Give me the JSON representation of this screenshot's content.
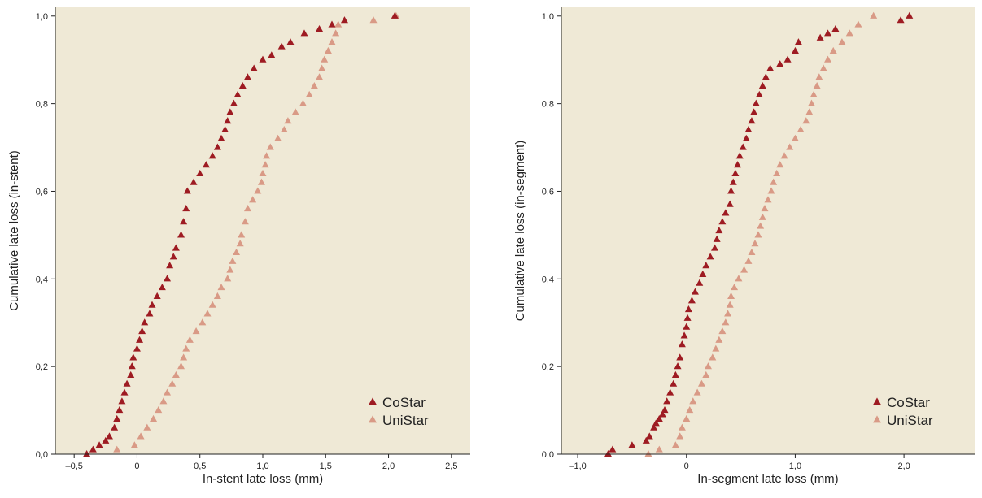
{
  "colors": {
    "plot_background": "#efe9d6",
    "costar": "#9e1b22",
    "unistar": "#d99a86"
  },
  "chart_data": [
    {
      "type": "scatter",
      "title": "",
      "xlabel": "In-stent late loss (mm)",
      "ylabel": "Cumulative late loss (in-stent)",
      "xlim": [
        -0.65,
        2.65
      ],
      "ylim": [
        0,
        1.02
      ],
      "x_ticks": [
        -0.5,
        0,
        0.5,
        1.0,
        1.5,
        2.0,
        2.5
      ],
      "x_tick_labels": [
        "–0,5",
        "0",
        "0,5",
        "1,0",
        "1,5",
        "2,0",
        "2,5"
      ],
      "y_ticks": [
        0,
        0.2,
        0.4,
        0.6,
        0.8,
        1.0
      ],
      "y_tick_labels": [
        "0,0",
        "0,2",
        "0,4",
        "0,6",
        "0,8",
        "1,0"
      ],
      "legend_position": "bottom-right",
      "series": [
        {
          "name": "CoStar",
          "color": "#9e1b22",
          "marker": "triangle",
          "points": [
            [
              -0.4,
              0.0
            ],
            [
              -0.35,
              0.01
            ],
            [
              -0.3,
              0.02
            ],
            [
              -0.25,
              0.03
            ],
            [
              -0.22,
              0.04
            ],
            [
              -0.18,
              0.06
            ],
            [
              -0.16,
              0.08
            ],
            [
              -0.14,
              0.1
            ],
            [
              -0.12,
              0.12
            ],
            [
              -0.1,
              0.14
            ],
            [
              -0.08,
              0.16
            ],
            [
              -0.05,
              0.18
            ],
            [
              -0.04,
              0.2
            ],
            [
              -0.03,
              0.22
            ],
            [
              0.0,
              0.24
            ],
            [
              0.02,
              0.26
            ],
            [
              0.04,
              0.28
            ],
            [
              0.06,
              0.3
            ],
            [
              0.1,
              0.32
            ],
            [
              0.12,
              0.34
            ],
            [
              0.16,
              0.36
            ],
            [
              0.2,
              0.38
            ],
            [
              0.24,
              0.4
            ],
            [
              0.26,
              0.43
            ],
            [
              0.29,
              0.45
            ],
            [
              0.31,
              0.47
            ],
            [
              0.35,
              0.5
            ],
            [
              0.37,
              0.53
            ],
            [
              0.39,
              0.56
            ],
            [
              0.4,
              0.6
            ],
            [
              0.45,
              0.62
            ],
            [
              0.5,
              0.64
            ],
            [
              0.55,
              0.66
            ],
            [
              0.6,
              0.68
            ],
            [
              0.64,
              0.7
            ],
            [
              0.67,
              0.72
            ],
            [
              0.7,
              0.74
            ],
            [
              0.72,
              0.76
            ],
            [
              0.74,
              0.78
            ],
            [
              0.77,
              0.8
            ],
            [
              0.8,
              0.82
            ],
            [
              0.84,
              0.84
            ],
            [
              0.88,
              0.86
            ],
            [
              0.93,
              0.88
            ],
            [
              1.0,
              0.9
            ],
            [
              1.07,
              0.91
            ],
            [
              1.15,
              0.93
            ],
            [
              1.22,
              0.94
            ],
            [
              1.33,
              0.96
            ],
            [
              1.45,
              0.97
            ],
            [
              1.55,
              0.98
            ],
            [
              1.65,
              0.99
            ],
            [
              2.05,
              1.0
            ]
          ]
        },
        {
          "name": "UniStar",
          "color": "#d99a86",
          "marker": "triangle",
          "points": [
            [
              -0.16,
              0.01
            ],
            [
              -0.02,
              0.02
            ],
            [
              0.03,
              0.04
            ],
            [
              0.08,
              0.06
            ],
            [
              0.13,
              0.08
            ],
            [
              0.17,
              0.1
            ],
            [
              0.21,
              0.12
            ],
            [
              0.24,
              0.14
            ],
            [
              0.28,
              0.16
            ],
            [
              0.31,
              0.18
            ],
            [
              0.35,
              0.2
            ],
            [
              0.37,
              0.22
            ],
            [
              0.39,
              0.24
            ],
            [
              0.42,
              0.26
            ],
            [
              0.47,
              0.28
            ],
            [
              0.52,
              0.3
            ],
            [
              0.56,
              0.32
            ],
            [
              0.6,
              0.34
            ],
            [
              0.64,
              0.36
            ],
            [
              0.67,
              0.38
            ],
            [
              0.72,
              0.4
            ],
            [
              0.74,
              0.42
            ],
            [
              0.76,
              0.44
            ],
            [
              0.79,
              0.46
            ],
            [
              0.82,
              0.48
            ],
            [
              0.83,
              0.5
            ],
            [
              0.86,
              0.53
            ],
            [
              0.88,
              0.56
            ],
            [
              0.92,
              0.58
            ],
            [
              0.96,
              0.6
            ],
            [
              0.99,
              0.62
            ],
            [
              1.0,
              0.64
            ],
            [
              1.02,
              0.66
            ],
            [
              1.03,
              0.68
            ],
            [
              1.06,
              0.7
            ],
            [
              1.12,
              0.72
            ],
            [
              1.17,
              0.74
            ],
            [
              1.2,
              0.76
            ],
            [
              1.26,
              0.78
            ],
            [
              1.32,
              0.8
            ],
            [
              1.37,
              0.82
            ],
            [
              1.41,
              0.84
            ],
            [
              1.45,
              0.86
            ],
            [
              1.47,
              0.88
            ],
            [
              1.49,
              0.9
            ],
            [
              1.52,
              0.92
            ],
            [
              1.55,
              0.94
            ],
            [
              1.58,
              0.96
            ],
            [
              1.6,
              0.98
            ],
            [
              1.88,
              0.99
            ],
            [
              2.06,
              1.0
            ]
          ]
        }
      ]
    },
    {
      "type": "scatter",
      "title": "",
      "xlabel": "In-segment late loss (mm)",
      "ylabel": "Cumulative late loss (in-segment)",
      "xlim": [
        -1.15,
        2.65
      ],
      "ylim": [
        0,
        1.02
      ],
      "x_ticks": [
        -1.0,
        0,
        1.0,
        2.0
      ],
      "x_tick_labels": [
        "–1,0",
        "0",
        "1,0",
        "2,0"
      ],
      "y_ticks": [
        0,
        0.2,
        0.4,
        0.6,
        0.8,
        1.0
      ],
      "y_tick_labels": [
        "0,0",
        "0,2",
        "0,4",
        "0,6",
        "0,8",
        "1,0"
      ],
      "legend_position": "bottom-right",
      "series": [
        {
          "name": "CoStar",
          "color": "#9e1b22",
          "marker": "triangle",
          "points": [
            [
              -0.72,
              0.0
            ],
            [
              -0.68,
              0.01
            ],
            [
              -0.5,
              0.02
            ],
            [
              -0.37,
              0.03
            ],
            [
              -0.34,
              0.04
            ],
            [
              -0.3,
              0.06
            ],
            [
              -0.28,
              0.07
            ],
            [
              -0.25,
              0.08
            ],
            [
              -0.22,
              0.09
            ],
            [
              -0.2,
              0.1
            ],
            [
              -0.18,
              0.12
            ],
            [
              -0.15,
              0.14
            ],
            [
              -0.12,
              0.16
            ],
            [
              -0.1,
              0.18
            ],
            [
              -0.08,
              0.2
            ],
            [
              -0.06,
              0.22
            ],
            [
              -0.04,
              0.25
            ],
            [
              -0.02,
              0.27
            ],
            [
              0.0,
              0.29
            ],
            [
              0.01,
              0.31
            ],
            [
              0.02,
              0.33
            ],
            [
              0.05,
              0.35
            ],
            [
              0.08,
              0.37
            ],
            [
              0.12,
              0.39
            ],
            [
              0.15,
              0.41
            ],
            [
              0.18,
              0.43
            ],
            [
              0.22,
              0.45
            ],
            [
              0.26,
              0.47
            ],
            [
              0.28,
              0.49
            ],
            [
              0.3,
              0.51
            ],
            [
              0.33,
              0.53
            ],
            [
              0.36,
              0.55
            ],
            [
              0.4,
              0.57
            ],
            [
              0.41,
              0.6
            ],
            [
              0.43,
              0.62
            ],
            [
              0.45,
              0.64
            ],
            [
              0.47,
              0.66
            ],
            [
              0.49,
              0.68
            ],
            [
              0.52,
              0.7
            ],
            [
              0.55,
              0.72
            ],
            [
              0.57,
              0.74
            ],
            [
              0.6,
              0.76
            ],
            [
              0.62,
              0.78
            ],
            [
              0.64,
              0.8
            ],
            [
              0.67,
              0.82
            ],
            [
              0.7,
              0.84
            ],
            [
              0.73,
              0.86
            ],
            [
              0.77,
              0.88
            ],
            [
              0.86,
              0.89
            ],
            [
              0.93,
              0.9
            ],
            [
              1.0,
              0.92
            ],
            [
              1.03,
              0.94
            ],
            [
              1.23,
              0.95
            ],
            [
              1.3,
              0.96
            ],
            [
              1.37,
              0.97
            ],
            [
              1.97,
              0.99
            ],
            [
              2.05,
              1.0
            ]
          ]
        },
        {
          "name": "UniStar",
          "color": "#d99a86",
          "marker": "triangle",
          "points": [
            [
              -0.35,
              0.0
            ],
            [
              -0.25,
              0.01
            ],
            [
              -0.1,
              0.02
            ],
            [
              -0.06,
              0.04
            ],
            [
              -0.04,
              0.06
            ],
            [
              0.0,
              0.08
            ],
            [
              0.03,
              0.1
            ],
            [
              0.06,
              0.12
            ],
            [
              0.1,
              0.14
            ],
            [
              0.14,
              0.16
            ],
            [
              0.18,
              0.18
            ],
            [
              0.2,
              0.2
            ],
            [
              0.24,
              0.22
            ],
            [
              0.27,
              0.24
            ],
            [
              0.3,
              0.26
            ],
            [
              0.33,
              0.28
            ],
            [
              0.36,
              0.3
            ],
            [
              0.38,
              0.32
            ],
            [
              0.4,
              0.34
            ],
            [
              0.41,
              0.36
            ],
            [
              0.44,
              0.38
            ],
            [
              0.48,
              0.4
            ],
            [
              0.53,
              0.42
            ],
            [
              0.57,
              0.44
            ],
            [
              0.6,
              0.46
            ],
            [
              0.63,
              0.48
            ],
            [
              0.66,
              0.5
            ],
            [
              0.68,
              0.52
            ],
            [
              0.7,
              0.54
            ],
            [
              0.72,
              0.56
            ],
            [
              0.75,
              0.58
            ],
            [
              0.78,
              0.6
            ],
            [
              0.8,
              0.62
            ],
            [
              0.83,
              0.64
            ],
            [
              0.86,
              0.66
            ],
            [
              0.9,
              0.68
            ],
            [
              0.95,
              0.7
            ],
            [
              1.0,
              0.72
            ],
            [
              1.05,
              0.74
            ],
            [
              1.1,
              0.76
            ],
            [
              1.13,
              0.78
            ],
            [
              1.15,
              0.8
            ],
            [
              1.17,
              0.82
            ],
            [
              1.2,
              0.84
            ],
            [
              1.22,
              0.86
            ],
            [
              1.26,
              0.88
            ],
            [
              1.3,
              0.9
            ],
            [
              1.35,
              0.92
            ],
            [
              1.43,
              0.94
            ],
            [
              1.5,
              0.96
            ],
            [
              1.58,
              0.98
            ],
            [
              1.72,
              1.0
            ]
          ]
        }
      ]
    }
  ]
}
